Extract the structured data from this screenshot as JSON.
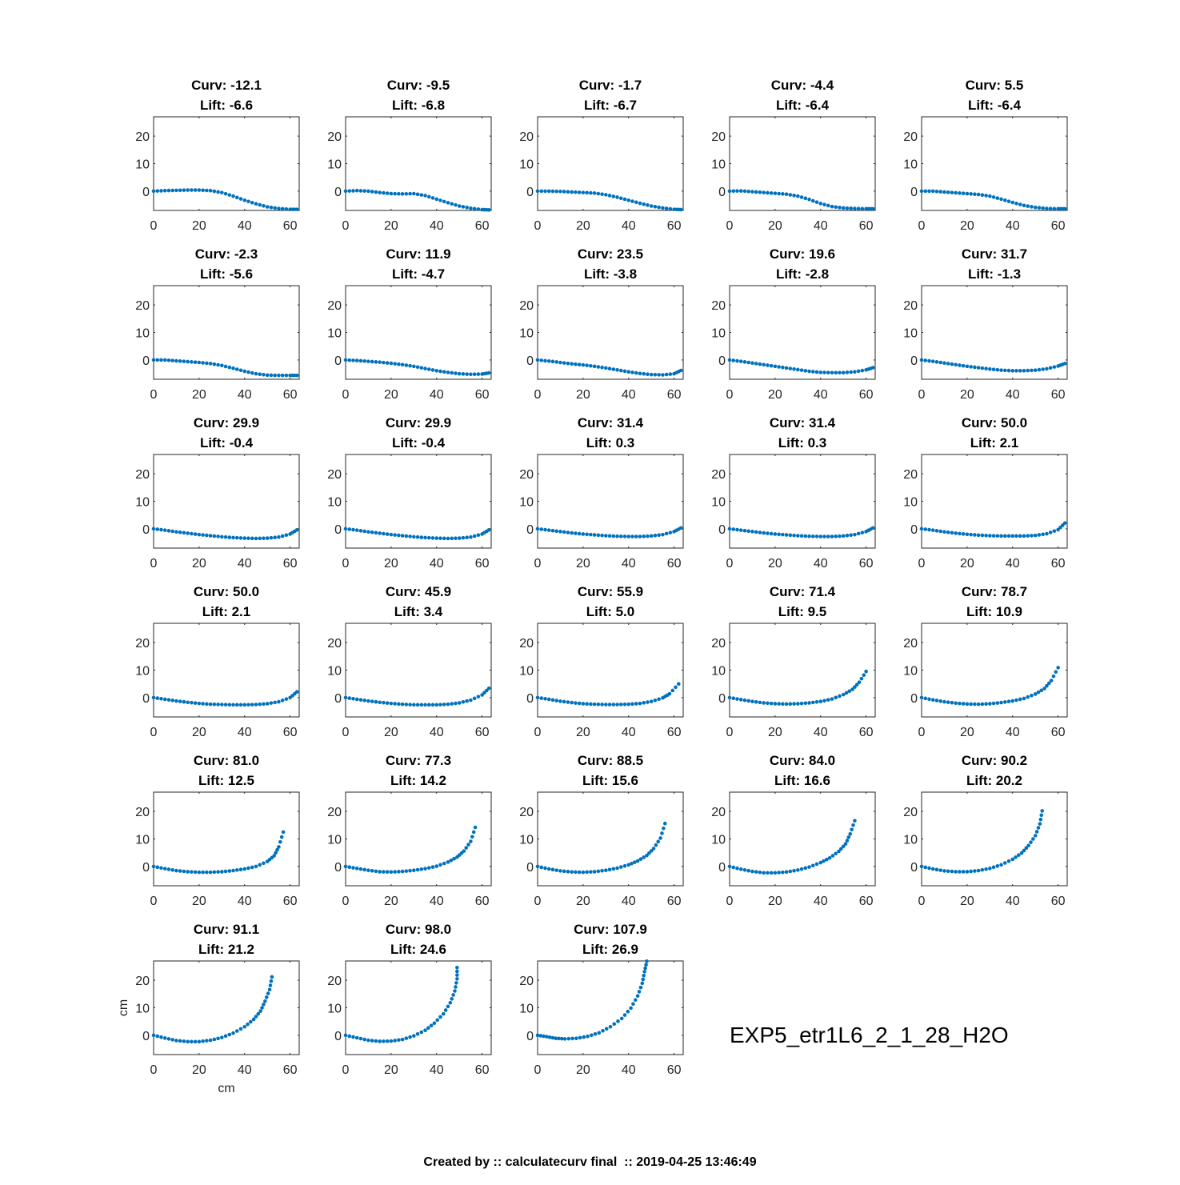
{
  "figure_label": "EXP5_etr1L6_2_1_28_H2O",
  "footer": "Created by :: calculatecurv final  :: 2019-04-25 13:46:49",
  "colors": {
    "series": "#0072BD",
    "axis": "#262626",
    "title": "#000000"
  },
  "chart_data": {
    "type": "scatter",
    "grid": false,
    "xlim": [
      0,
      64
    ],
    "ylim": [
      -7,
      27
    ],
    "xticks": [
      "0",
      "20",
      "40",
      "60"
    ],
    "yticks": [
      "20",
      "10",
      "0"
    ],
    "xlabel": "cm",
    "ylabel": "cm",
    "curv_label": "Curv: ",
    "lift_label": "Lift: ",
    "panels": [
      {
        "curv": "-12.1",
        "lift": "-6.6",
        "x": [
          0,
          5,
          10,
          15,
          20,
          25,
          30,
          35,
          40,
          45,
          50,
          55,
          60,
          63
        ],
        "y": [
          0,
          0.2,
          0.3,
          0.4,
          0.4,
          0.2,
          -0.5,
          -1.8,
          -3.3,
          -4.6,
          -5.7,
          -6.3,
          -6.6,
          -6.6
        ]
      },
      {
        "curv": "-9.5",
        "lift": "-6.8",
        "x": [
          0,
          5,
          10,
          15,
          20,
          25,
          30,
          35,
          40,
          45,
          50,
          55,
          60,
          63
        ],
        "y": [
          0,
          0.2,
          0,
          -0.5,
          -0.9,
          -1,
          -0.9,
          -1.6,
          -2.9,
          -4.2,
          -5.4,
          -6.2,
          -6.7,
          -6.8
        ]
      },
      {
        "curv": "-1.7",
        "lift": "-6.7",
        "x": [
          0,
          5,
          10,
          15,
          20,
          25,
          30,
          35,
          40,
          45,
          50,
          55,
          60,
          63
        ],
        "y": [
          0,
          0,
          -0.1,
          -0.3,
          -0.5,
          -0.7,
          -1.3,
          -2.2,
          -3.3,
          -4.4,
          -5.4,
          -6.1,
          -6.6,
          -6.7
        ]
      },
      {
        "curv": "-4.4",
        "lift": "-6.4",
        "x": [
          0,
          5,
          10,
          15,
          20,
          25,
          30,
          35,
          40,
          45,
          50,
          55,
          60,
          63
        ],
        "y": [
          0,
          0.1,
          -0.2,
          -0.5,
          -0.8,
          -1.1,
          -1.8,
          -3,
          -4.5,
          -5.6,
          -6.1,
          -6.3,
          -6.4,
          -6.4
        ]
      },
      {
        "curv": "5.5",
        "lift": "-6.4",
        "x": [
          0,
          5,
          10,
          15,
          20,
          25,
          30,
          35,
          40,
          45,
          50,
          55,
          60,
          63
        ],
        "y": [
          0,
          0,
          -0.3,
          -0.6,
          -0.9,
          -1.2,
          -1.8,
          -2.9,
          -4.1,
          -5.2,
          -5.9,
          -6.3,
          -6.4,
          -6.4
        ]
      },
      {
        "curv": "-2.3",
        "lift": "-5.6",
        "x": [
          0,
          5,
          10,
          15,
          20,
          25,
          30,
          35,
          40,
          45,
          50,
          55,
          60,
          63
        ],
        "y": [
          0,
          0,
          -0.3,
          -0.6,
          -0.9,
          -1.3,
          -2,
          -3,
          -4.1,
          -5,
          -5.5,
          -5.6,
          -5.6,
          -5.6
        ]
      },
      {
        "curv": "11.9",
        "lift": "-4.7",
        "x": [
          0,
          5,
          10,
          15,
          20,
          25,
          30,
          35,
          40,
          45,
          50,
          55,
          60,
          63
        ],
        "y": [
          0,
          -0.2,
          -0.5,
          -0.8,
          -1.2,
          -1.7,
          -2.3,
          -3.1,
          -3.9,
          -4.5,
          -5,
          -5.2,
          -5.1,
          -4.7
        ]
      },
      {
        "curv": "23.5",
        "lift": "-3.8",
        "x": [
          0,
          5,
          10,
          15,
          20,
          25,
          30,
          35,
          40,
          45,
          50,
          55,
          60,
          63
        ],
        "y": [
          0,
          -0.4,
          -0.9,
          -1.4,
          -1.8,
          -2.3,
          -2.9,
          -3.6,
          -4.3,
          -4.9,
          -5.3,
          -5.4,
          -5,
          -3.8
        ]
      },
      {
        "curv": "19.6",
        "lift": "-2.8",
        "x": [
          0,
          5,
          10,
          15,
          20,
          25,
          30,
          35,
          40,
          45,
          50,
          55,
          60,
          63
        ],
        "y": [
          0,
          -0.5,
          -1.1,
          -1.7,
          -2.3,
          -2.9,
          -3.5,
          -4.1,
          -4.5,
          -4.6,
          -4.6,
          -4.3,
          -3.6,
          -2.8
        ]
      },
      {
        "curv": "31.7",
        "lift": "-1.3",
        "x": [
          0,
          5,
          10,
          15,
          20,
          25,
          30,
          35,
          40,
          45,
          50,
          55,
          60,
          63
        ],
        "y": [
          0,
          -0.5,
          -1.1,
          -1.7,
          -2.3,
          -2.8,
          -3.3,
          -3.7,
          -3.9,
          -3.9,
          -3.7,
          -3.2,
          -2.2,
          -1.3
        ]
      },
      {
        "curv": "29.9",
        "lift": "-0.4",
        "x": [
          0,
          5,
          10,
          15,
          20,
          25,
          30,
          35,
          40,
          45,
          50,
          55,
          60,
          63
        ],
        "y": [
          0,
          -0.5,
          -1.1,
          -1.6,
          -2.1,
          -2.5,
          -2.9,
          -3.2,
          -3.4,
          -3.5,
          -3.4,
          -3,
          -1.9,
          -0.4
        ]
      },
      {
        "curv": "29.9",
        "lift": "-0.4",
        "x": [
          0,
          5,
          10,
          15,
          20,
          25,
          30,
          35,
          40,
          45,
          50,
          55,
          60,
          63
        ],
        "y": [
          0,
          -0.5,
          -1.1,
          -1.6,
          -2.1,
          -2.5,
          -2.9,
          -3.2,
          -3.4,
          -3.5,
          -3.4,
          -3,
          -1.9,
          -0.4
        ]
      },
      {
        "curv": "31.4",
        "lift": "0.3",
        "x": [
          0,
          5,
          10,
          15,
          20,
          25,
          30,
          35,
          40,
          45,
          50,
          55,
          60,
          63
        ],
        "y": [
          0,
          -0.5,
          -1,
          -1.5,
          -1.9,
          -2.2,
          -2.5,
          -2.7,
          -2.8,
          -2.8,
          -2.6,
          -2.1,
          -1,
          0.3
        ]
      },
      {
        "curv": "31.4",
        "lift": "0.3",
        "x": [
          0,
          5,
          10,
          15,
          20,
          25,
          30,
          35,
          40,
          45,
          50,
          55,
          60,
          63
        ],
        "y": [
          0,
          -0.5,
          -1,
          -1.5,
          -1.9,
          -2.2,
          -2.5,
          -2.7,
          -2.8,
          -2.8,
          -2.6,
          -2.1,
          -1,
          0.3
        ]
      },
      {
        "curv": "50.0",
        "lift": "2.1",
        "x": [
          0,
          5,
          10,
          15,
          20,
          25,
          30,
          35,
          40,
          45,
          50,
          55,
          60,
          63
        ],
        "y": [
          0,
          -0.5,
          -1.1,
          -1.6,
          -2,
          -2.3,
          -2.5,
          -2.6,
          -2.6,
          -2.6,
          -2.4,
          -1.8,
          -0.3,
          2.1
        ]
      },
      {
        "curv": "50.0",
        "lift": "2.1",
        "x": [
          0,
          5,
          10,
          15,
          20,
          25,
          30,
          35,
          40,
          45,
          50,
          55,
          60,
          63
        ],
        "y": [
          0,
          -0.6,
          -1.2,
          -1.7,
          -2.1,
          -2.4,
          -2.5,
          -2.6,
          -2.6,
          -2.5,
          -2.2,
          -1.5,
          0,
          2.1
        ]
      },
      {
        "curv": "45.9",
        "lift": "3.4",
        "x": [
          0,
          5,
          10,
          15,
          20,
          25,
          30,
          35,
          40,
          45,
          50,
          55,
          60,
          63
        ],
        "y": [
          0,
          -0.6,
          -1.2,
          -1.7,
          -2.1,
          -2.4,
          -2.6,
          -2.6,
          -2.6,
          -2.4,
          -1.9,
          -0.9,
          1,
          3.4
        ]
      },
      {
        "curv": "55.9",
        "lift": "5.0",
        "x": [
          0,
          5,
          10,
          15,
          20,
          25,
          30,
          35,
          40,
          45,
          50,
          55,
          58,
          62
        ],
        "y": [
          0,
          -0.6,
          -1.3,
          -1.8,
          -2.2,
          -2.4,
          -2.5,
          -2.5,
          -2.4,
          -2.1,
          -1.4,
          -0.1,
          1.4,
          5
        ]
      },
      {
        "curv": "71.4",
        "lift": "9.5",
        "x": [
          0,
          5,
          10,
          15,
          20,
          25,
          30,
          35,
          40,
          45,
          50,
          54,
          57,
          60
        ],
        "y": [
          0,
          -0.7,
          -1.4,
          -1.9,
          -2.2,
          -2.3,
          -2.2,
          -1.9,
          -1.4,
          -0.5,
          1.1,
          3,
          5.6,
          9.5
        ]
      },
      {
        "curv": "78.7",
        "lift": "10.9",
        "x": [
          0,
          5,
          10,
          15,
          20,
          25,
          30,
          35,
          40,
          45,
          50,
          54,
          57,
          60
        ],
        "y": [
          0,
          -0.8,
          -1.5,
          -2,
          -2.3,
          -2.4,
          -2.2,
          -1.8,
          -1.2,
          -0.3,
          1.3,
          3.3,
          6.2,
          10.9
        ]
      },
      {
        "curv": "81.0",
        "lift": "12.5",
        "x": [
          0,
          5,
          10,
          15,
          20,
          25,
          30,
          35,
          40,
          45,
          50,
          53,
          55,
          57
        ],
        "y": [
          0,
          -0.8,
          -1.5,
          -1.9,
          -2.1,
          -2.1,
          -1.9,
          -1.5,
          -0.9,
          0,
          1.8,
          3.9,
          7.1,
          12.5
        ]
      },
      {
        "curv": "77.3",
        "lift": "14.2",
        "x": [
          0,
          5,
          10,
          15,
          20,
          25,
          30,
          35,
          40,
          45,
          49,
          52,
          55,
          57
        ],
        "y": [
          0,
          -0.7,
          -1.4,
          -1.9,
          -2,
          -1.8,
          -1.4,
          -0.8,
          0.1,
          1.6,
          3.4,
          5.6,
          9.1,
          14.2
        ]
      },
      {
        "curv": "88.5",
        "lift": "15.6",
        "x": [
          0,
          5,
          10,
          15,
          20,
          25,
          30,
          35,
          40,
          44,
          48,
          51,
          54,
          56
        ],
        "y": [
          0,
          -0.9,
          -1.6,
          -2,
          -2.1,
          -1.9,
          -1.4,
          -0.6,
          0.6,
          2,
          4,
          6.5,
          10.3,
          15.6
        ]
      },
      {
        "curv": "84.0",
        "lift": "16.6",
        "x": [
          0,
          5,
          10,
          15,
          20,
          25,
          30,
          35,
          40,
          44,
          48,
          51,
          53,
          55
        ],
        "y": [
          0,
          -1,
          -1.8,
          -2.3,
          -2.3,
          -2,
          -1.3,
          -0.2,
          1.4,
          3.1,
          5.5,
          8.2,
          11.8,
          16.6
        ]
      },
      {
        "curv": "90.2",
        "lift": "20.2",
        "x": [
          0,
          5,
          10,
          15,
          20,
          25,
          30,
          35,
          40,
          44,
          47,
          50,
          52,
          53
        ],
        "y": [
          0,
          -0.9,
          -1.6,
          -1.9,
          -1.9,
          -1.5,
          -0.7,
          0.6,
          2.6,
          4.9,
          7.6,
          11.2,
          15.5,
          20.2
        ]
      },
      {
        "curv": "91.1",
        "lift": "21.2",
        "x": [
          0,
          5,
          10,
          15,
          20,
          25,
          30,
          35,
          40,
          44,
          47,
          49,
          51,
          52
        ],
        "y": [
          0,
          -1,
          -1.9,
          -2.3,
          -2.3,
          -1.8,
          -0.8,
          0.8,
          3.1,
          5.8,
          8.8,
          12.4,
          16.6,
          21.2
        ]
      },
      {
        "curv": "98.0",
        "lift": "24.6",
        "x": [
          0,
          5,
          10,
          15,
          20,
          25,
          30,
          35,
          39,
          43,
          46,
          48,
          49,
          49
        ],
        "y": [
          0,
          -0.9,
          -1.8,
          -2.2,
          -2.1,
          -1.5,
          -0.2,
          1.8,
          4.4,
          7.8,
          11.8,
          16.1,
          20.5,
          24.6
        ]
      },
      {
        "curv": "107.9",
        "lift": "26.9",
        "x": [
          0,
          4,
          8,
          12,
          17,
          22,
          27,
          32,
          37,
          41,
          44,
          46,
          47,
          48
        ],
        "y": [
          0,
          -0.5,
          -1.1,
          -1.3,
          -1.1,
          -0.4,
          0.9,
          3.1,
          6.1,
          9.9,
          14.3,
          18.9,
          23.1,
          26.9
        ]
      }
    ]
  }
}
